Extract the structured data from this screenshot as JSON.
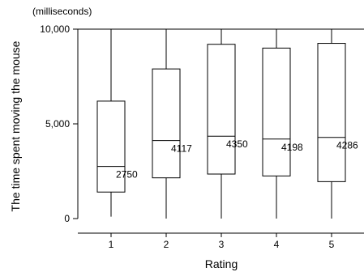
{
  "chart_data": {
    "type": "box",
    "unit_label": "(milliseconds)",
    "ylabel": "The time spent moving the mouse",
    "xlabel": "Rating",
    "ylim": [
      0,
      10000
    ],
    "yticks": [
      0,
      5000,
      10000
    ],
    "ytick_labels": [
      "0",
      "5,000",
      "10,000"
    ],
    "categories": [
      "1",
      "2",
      "3",
      "4",
      "5"
    ],
    "boxes": [
      {
        "category": "1",
        "min": 100,
        "q1": 1400,
        "median": 2750,
        "q3": 6200,
        "max": 10000,
        "label": "2750"
      },
      {
        "category": "2",
        "min": 0,
        "q1": 2150,
        "median": 4117,
        "q3": 7900,
        "max": 10000,
        "label": "4117"
      },
      {
        "category": "3",
        "min": 0,
        "q1": 2350,
        "median": 4350,
        "q3": 9200,
        "max": 10000,
        "label": "4350"
      },
      {
        "category": "4",
        "min": 0,
        "q1": 2250,
        "median": 4198,
        "q3": 9000,
        "max": 10000,
        "label": "4198"
      },
      {
        "category": "5",
        "min": 0,
        "q1": 1950,
        "median": 4286,
        "q3": 9250,
        "max": 10000,
        "label": "4286"
      }
    ]
  }
}
